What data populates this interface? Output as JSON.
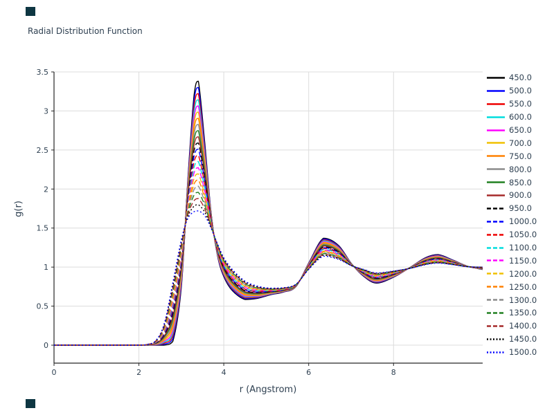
{
  "colors": {
    "text": "#2d3f50",
    "grid": "#dcdcdc",
    "axis": "#262626",
    "corner_marker": "#0e3642",
    "background": "#ffffff"
  },
  "chart_data": {
    "type": "line",
    "title": "Radial Distribution Function",
    "xlabel": "r (Angstrom)",
    "ylabel": "g(r)",
    "xlim": [
      0,
      10.1
    ],
    "ylim": [
      -0.23,
      3.5
    ],
    "xticks": [
      0,
      2,
      4,
      6,
      8
    ],
    "yticks": [
      0,
      0.5,
      1,
      1.5,
      2,
      2.5,
      3,
      3.5
    ],
    "grid": true,
    "legend_position": "right",
    "x_anchors": [
      0,
      0.5,
      1.0,
      1.5,
      2.0,
      2.2,
      2.4,
      2.6,
      2.8,
      3.0,
      3.15,
      3.3,
      3.4,
      3.55,
      3.7,
      3.85,
      4.0,
      4.2,
      4.5,
      4.8,
      5.1,
      5.4,
      5.7,
      6.0,
      6.35,
      6.7,
      7.0,
      7.3,
      7.6,
      8.0,
      8.4,
      8.75,
      9.05,
      9.4,
      9.75,
      10.1
    ],
    "envelope": {
      "cold_temp": 450,
      "hot_temp": 1500,
      "cold_y": [
        0,
        0,
        0,
        0,
        0,
        0,
        0,
        0,
        0.05,
        0.75,
        2.1,
        3.2,
        3.38,
        2.6,
        1.7,
        1.15,
        0.88,
        0.7,
        0.585,
        0.6,
        0.645,
        0.68,
        0.75,
        1.05,
        1.37,
        1.28,
        1.05,
        0.88,
        0.795,
        0.87,
        1.0,
        1.12,
        1.16,
        1.09,
        1.01,
        0.97
      ],
      "hot_y": [
        0,
        0,
        0,
        0,
        0,
        0.01,
        0.06,
        0.28,
        0.8,
        1.35,
        1.62,
        1.71,
        1.72,
        1.66,
        1.5,
        1.3,
        1.12,
        0.97,
        0.82,
        0.755,
        0.73,
        0.735,
        0.78,
        0.97,
        1.14,
        1.1,
        1.02,
        0.97,
        0.925,
        0.95,
        0.985,
        1.03,
        1.05,
        1.03,
        1.005,
        1.0
      ]
    },
    "series": [
      {
        "name": "450.0",
        "temperature": 450,
        "color": "#000000",
        "line_style": "solid",
        "first_peak_g": 3.38
      },
      {
        "name": "500.0",
        "temperature": 500,
        "color": "#0000ff",
        "line_style": "solid",
        "first_peak_g": 3.3
      },
      {
        "name": "550.0",
        "temperature": 550,
        "color": "#ee0000",
        "line_style": "solid",
        "first_peak_g": 3.23
      },
      {
        "name": "600.0",
        "temperature": 600,
        "color": "#00dddd",
        "line_style": "solid",
        "first_peak_g": 3.15
      },
      {
        "name": "650.0",
        "temperature": 650,
        "color": "#ff00ff",
        "line_style": "solid",
        "first_peak_g": 3.07
      },
      {
        "name": "700.0",
        "temperature": 700,
        "color": "#f0c000",
        "line_style": "solid",
        "first_peak_g": 2.99
      },
      {
        "name": "750.0",
        "temperature": 750,
        "color": "#ff8000",
        "line_style": "solid",
        "first_peak_g": 2.91
      },
      {
        "name": "800.0",
        "temperature": 800,
        "color": "#8c8c8c",
        "line_style": "solid",
        "first_peak_g": 2.83
      },
      {
        "name": "850.0",
        "temperature": 850,
        "color": "#208020",
        "line_style": "solid",
        "first_peak_g": 2.75
      },
      {
        "name": "900.0",
        "temperature": 900,
        "color": "#a52a2a",
        "line_style": "solid",
        "first_peak_g": 2.67
      },
      {
        "name": "950.0",
        "temperature": 950,
        "color": "#000000",
        "line_style": "dashed",
        "first_peak_g": 2.59
      },
      {
        "name": "1000.0",
        "temperature": 1000,
        "color": "#0000ff",
        "line_style": "dashed",
        "first_peak_g": 2.51
      },
      {
        "name": "1050.0",
        "temperature": 1050,
        "color": "#ee0000",
        "line_style": "dashed",
        "first_peak_g": 2.44
      },
      {
        "name": "1100.0",
        "temperature": 1100,
        "color": "#00dddd",
        "line_style": "dashed",
        "first_peak_g": 2.36
      },
      {
        "name": "1150.0",
        "temperature": 1150,
        "color": "#ff00ff",
        "line_style": "dashed",
        "first_peak_g": 2.28
      },
      {
        "name": "1200.0",
        "temperature": 1200,
        "color": "#f0c000",
        "line_style": "dashed",
        "first_peak_g": 2.2
      },
      {
        "name": "1250.0",
        "temperature": 1250,
        "color": "#ff8000",
        "line_style": "dashed",
        "first_peak_g": 2.12
      },
      {
        "name": "1300.0",
        "temperature": 1300,
        "color": "#8c8c8c",
        "line_style": "dashed",
        "first_peak_g": 2.04
      },
      {
        "name": "1350.0",
        "temperature": 1350,
        "color": "#208020",
        "line_style": "dashed",
        "first_peak_g": 1.96
      },
      {
        "name": "1400.0",
        "temperature": 1400,
        "color": "#a52a2a",
        "line_style": "dashed",
        "first_peak_g": 1.88
      },
      {
        "name": "1450.0",
        "temperature": 1450,
        "color": "#000000",
        "line_style": "dotted",
        "first_peak_g": 1.8
      },
      {
        "name": "1500.0",
        "temperature": 1500,
        "color": "#0000ff",
        "line_style": "dotted",
        "first_peak_g": 1.72
      }
    ]
  }
}
